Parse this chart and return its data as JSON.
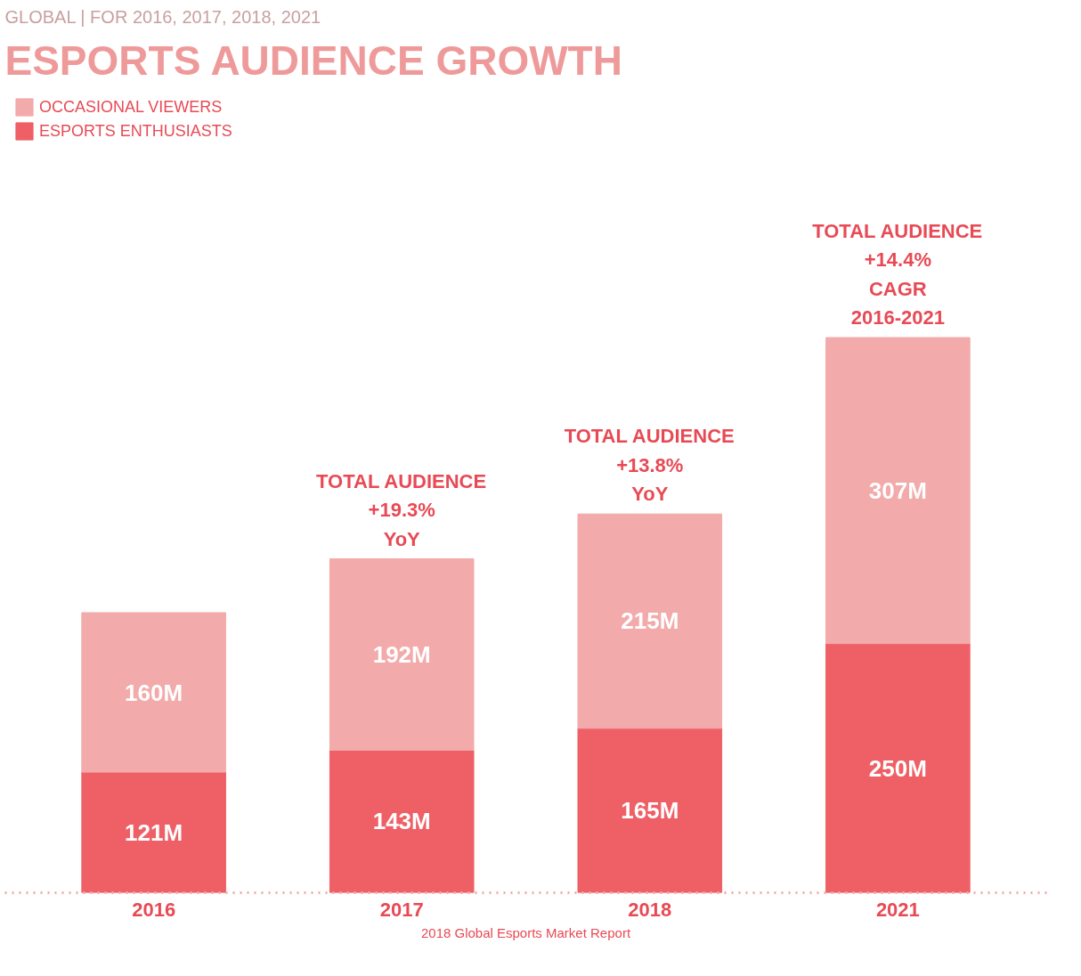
{
  "chart_data": {
    "type": "bar",
    "stacked": true,
    "title": "ESPORTS AUDIENCE GROWTH",
    "subtitle": "GLOBAL | FOR 2016, 2017, 2018, 2021",
    "categories": [
      "2016",
      "2017",
      "2018",
      "2021"
    ],
    "series": [
      {
        "name": "ESPORTS ENTHUSIASTS",
        "color": "#ee6066",
        "values": [
          121,
          143,
          165,
          250
        ],
        "value_labels": [
          "121M",
          "143M",
          "165M",
          "250M"
        ]
      },
      {
        "name": "OCCASIONAL VIEWERS",
        "color": "#f2aaaa",
        "values": [
          160,
          192,
          215,
          307
        ],
        "value_labels": [
          "160M",
          "192M",
          "215M",
          "307M"
        ]
      }
    ],
    "legend": "top left",
    "grid": false,
    "tick_labels": "x",
    "annotations": [
      {
        "text": "TOTAL AUDIENCE\n+19.3%\nYoY",
        "x": "2017",
        "y": 335
      },
      {
        "text": "TOTAL AUDIENCE\n+13.8%\nYoY",
        "x": "2018",
        "y": 380
      },
      {
        "text": "TOTAL AUDIENCE\n+14.4%\nCAGR\n2016-2021",
        "x": "2021",
        "y": 557
      },
      "2018 Global Esports Market Report"
    ]
  }
}
